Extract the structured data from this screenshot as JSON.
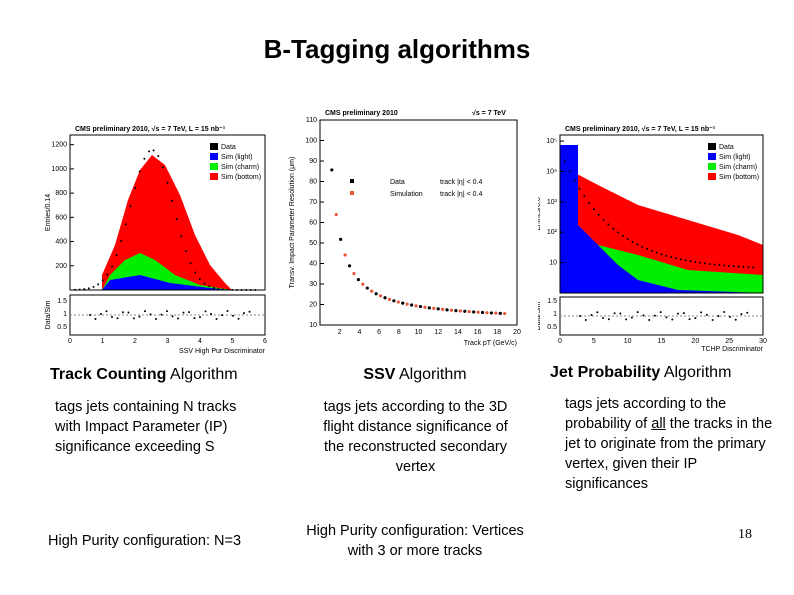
{
  "title": "B-Tagging algorithms",
  "figures": [
    {
      "header": "CMS preliminary 2010,  √s = 7 TeV,  L = 15 nb⁻¹",
      "y_label": "Entries/0.14",
      "ratio_label": "Data/Sim",
      "x_label": "SSV High Pur Discriminator",
      "legend": [
        "Data",
        "Sim (light)",
        "Sim (charm)",
        "Sim (bottom)"
      ],
      "yticks": [
        "200",
        "400",
        "600",
        "800",
        "1000",
        "1200"
      ],
      "ratio_ticks": [
        "0.5",
        "1",
        "1.5"
      ],
      "xticks": [
        "0",
        "1",
        "2",
        "3",
        "4",
        "5",
        "6"
      ]
    },
    {
      "header": "CMS preliminary 2010",
      "header_right": "√s = 7 TeV",
      "y_label": "Transv. Impact Parameter Resolution (μm)",
      "x_label": "Track pT (GeV/c)",
      "legend": [
        "Data",
        "Simulation"
      ],
      "legend_cut": "track |η| < 0.4",
      "yticks": [
        "10",
        "20",
        "30",
        "40",
        "50",
        "60",
        "70",
        "80",
        "90",
        "100",
        "110"
      ],
      "xticks": [
        "2",
        "4",
        "6",
        "8",
        "10",
        "12",
        "14",
        "16",
        "18",
        "20"
      ]
    },
    {
      "header": "CMS preliminary 2010, √s = 7 TeV, L = 15 nb⁻¹",
      "y_label": "Entries/0.6",
      "ratio_label": "Data/Sim",
      "x_label": "TCHP Discriminator",
      "legend": [
        "Data",
        "Sim (light)",
        "Sim (charm)",
        "Sim (bottom)"
      ],
      "yticks": [
        "10",
        "10²",
        "10³",
        "10⁴",
        "10⁵"
      ],
      "ratio_ticks": [
        "0.5",
        "1",
        "1.5"
      ],
      "xticks": [
        "0",
        "5",
        "10",
        "15",
        "20",
        "25",
        "30"
      ]
    }
  ],
  "columns": [
    {
      "heading_bold": "Track Counting",
      "heading_rest": " Algorithm",
      "description": "tags jets containing N tracks with Impact Parameter (IP) significance exceeding S",
      "note": "High Purity configuration: N=3"
    },
    {
      "heading_bold": "SSV",
      "heading_rest": " Algorithm",
      "description": "tags jets according to the 3D flight distance significance of the reconstructed secondary vertex",
      "note": "High Purity configuration: Vertices with 3 or more tracks"
    },
    {
      "heading_bold": "Jet Probability",
      "heading_rest": " Algorithm",
      "description_parts": [
        "tags jets according to the probability of ",
        "all",
        " the tracks in the jet to originate from the primary vertex, given their IP significances"
      ]
    }
  ],
  "page_number": "18"
}
